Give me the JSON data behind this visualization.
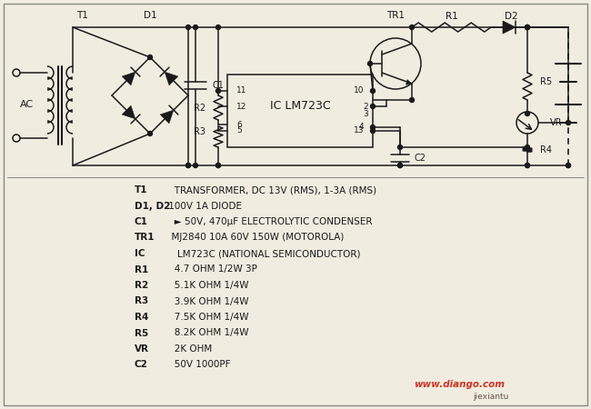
{
  "background_color": "#f0ece0",
  "circuit_color": "#1a1a1a",
  "bom_lines": [
    [
      "T1",
      "   TRANSFORMER, DC 13V (RMS), 1-3A (RMS)"
    ],
    [
      "D1, D2",
      " 100V 1A DIODE"
    ],
    [
      "C1",
      "   ► 50V, 470μF ELECTROLYTIC CONDENSER"
    ],
    [
      "TR1",
      "  MJ2840 10A 60V 150W (MOTOROLA)"
    ],
    [
      "IC",
      "    LM723C (NATIONAL SEMICONDUCTOR)"
    ],
    [
      "R1",
      "   4.7 OHM 1/2W 3P"
    ],
    [
      "R2",
      "   5.1K OHM 1/4W"
    ],
    [
      "R3",
      "   3.9K OHM 1/4W"
    ],
    [
      "R4",
      "   7.5K OHM 1/4W"
    ],
    [
      "R5",
      "   8.2K OHM 1/4W"
    ],
    [
      "VR",
      "   2K OHM"
    ],
    [
      "C2",
      "   50V 1000PF"
    ]
  ],
  "watermark": "www.diango.com",
  "watermark2": "jiexiantu"
}
